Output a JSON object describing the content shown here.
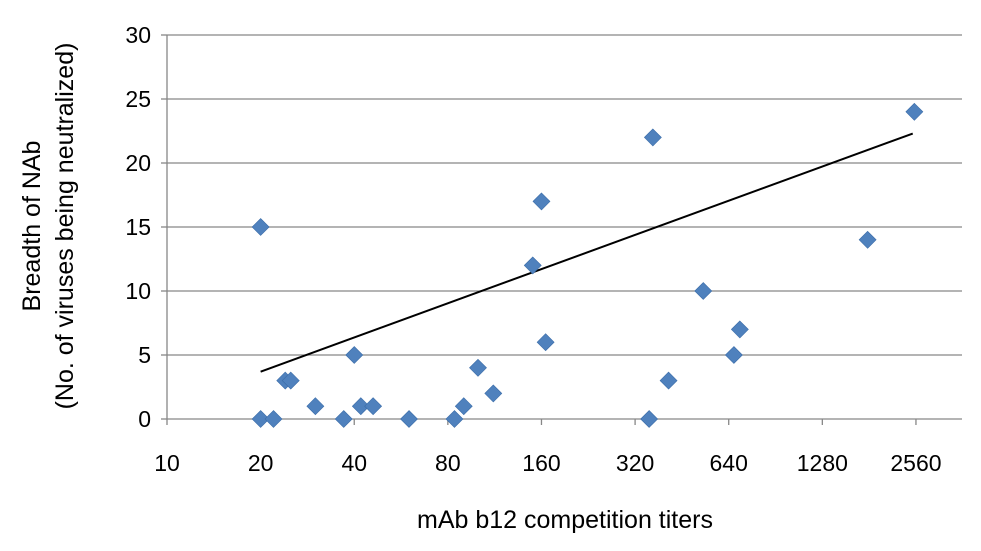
{
  "chart_data": {
    "type": "scatter",
    "title": "",
    "xlabel": "mAb b12 competition titers",
    "ylabel_lines": [
      "Breadth of NAb",
      "(No. of viruses being neutralized)"
    ],
    "x_scale": "log2",
    "xlim": [
      10,
      3600
    ],
    "ylim": [
      0,
      30
    ],
    "xticks": [
      10,
      20,
      40,
      80,
      160,
      320,
      640,
      1280,
      2560
    ],
    "xtick_labels": [
      "10",
      "20",
      "40",
      "80",
      "160",
      "320",
      "640",
      "1280",
      "2560"
    ],
    "yticks": [
      0,
      5,
      10,
      15,
      20,
      25,
      30
    ],
    "ytick_labels": [
      "0",
      "5",
      "10",
      "15",
      "20",
      "25",
      "30"
    ],
    "grid": "horizontal",
    "legend": "none",
    "marker": "diamond",
    "marker_color": "#4F81BD",
    "trendline_color": "#000000",
    "points": [
      {
        "x": 20,
        "y": 15
      },
      {
        "x": 20,
        "y": 0
      },
      {
        "x": 22,
        "y": 0
      },
      {
        "x": 24,
        "y": 3
      },
      {
        "x": 25,
        "y": 3
      },
      {
        "x": 30,
        "y": 1
      },
      {
        "x": 37,
        "y": 0
      },
      {
        "x": 40,
        "y": 5
      },
      {
        "x": 42,
        "y": 1
      },
      {
        "x": 46,
        "y": 1
      },
      {
        "x": 60,
        "y": 0
      },
      {
        "x": 84,
        "y": 0
      },
      {
        "x": 90,
        "y": 1
      },
      {
        "x": 100,
        "y": 4
      },
      {
        "x": 112,
        "y": 2
      },
      {
        "x": 150,
        "y": 12
      },
      {
        "x": 160,
        "y": 17
      },
      {
        "x": 165,
        "y": 6
      },
      {
        "x": 355,
        "y": 0
      },
      {
        "x": 365,
        "y": 22
      },
      {
        "x": 410,
        "y": 3
      },
      {
        "x": 530,
        "y": 10
      },
      {
        "x": 665,
        "y": 5
      },
      {
        "x": 695,
        "y": 7
      },
      {
        "x": 1790,
        "y": 14
      },
      {
        "x": 2530,
        "y": 24
      }
    ],
    "trendline": {
      "x": [
        20,
        2500
      ],
      "y": [
        3.7,
        22.3
      ]
    }
  }
}
